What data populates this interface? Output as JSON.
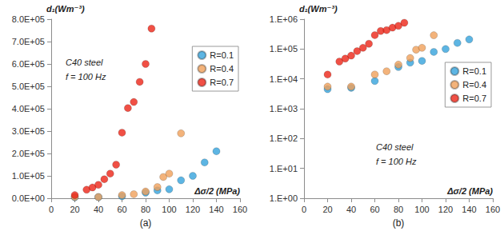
{
  "chart_data": [
    {
      "type": "scatter",
      "title": "(a)",
      "x_label": "Δσ/2 (MPa)",
      "y_label": "d₁(Wm⁻³)",
      "annotations": [
        "C40 steel",
        "f = 100 Hz"
      ],
      "xlim": [
        0,
        160
      ],
      "xticks": [
        0,
        20,
        40,
        60,
        80,
        100,
        120,
        140,
        160
      ],
      "ylim": [
        0,
        800000
      ],
      "yticks": [
        {
          "value": 0,
          "label": "0.0E+00"
        },
        {
          "value": 100000,
          "label": "1.0E+05"
        },
        {
          "value": 200000,
          "label": "2.0E+05"
        },
        {
          "value": 300000,
          "label": "3.0E+05"
        },
        {
          "value": 400000,
          "label": "4.0E+05"
        },
        {
          "value": 500000,
          "label": "5.0E+05"
        },
        {
          "value": 600000,
          "label": "6.0E+05"
        },
        {
          "value": 700000,
          "label": "7.0E+05"
        },
        {
          "value": 800000,
          "label": "8.0E+05"
        }
      ],
      "grid": false,
      "legend": "right",
      "marker": "circle",
      "series": [
        {
          "name": "R=0.1",
          "color": "#35a3dc",
          "x": [
            20,
            40,
            60,
            80,
            90,
            100,
            110,
            120,
            130,
            140
          ],
          "values": [
            4500,
            5000,
            8500,
            25000,
            35000,
            40000,
            80000,
            100000,
            160000,
            210000
          ]
        },
        {
          "name": "R=0.4",
          "color": "#f0a05a",
          "x": [
            20,
            40,
            60,
            70,
            80,
            90,
            95,
            100,
            110
          ],
          "values": [
            5500,
            5500,
            14000,
            18000,
            30000,
            50000,
            95000,
            110000,
            290000
          ]
        },
        {
          "name": "R=0.7",
          "color": "#ec2416",
          "x": [
            20,
            30,
            35,
            40,
            45,
            50,
            55,
            60,
            65,
            70,
            75,
            80,
            85
          ],
          "values": [
            14000,
            38000,
            48000,
            60000,
            85000,
            110000,
            150000,
            293000,
            403000,
            430000,
            520000,
            600000,
            758000
          ]
        }
      ]
    },
    {
      "type": "scatter",
      "title": "(b)",
      "x_label": "Δσ/2 (MPa)",
      "y_label": "d₁(Wm⁻³)",
      "annotations": [
        "C40 steel",
        "f = 100 Hz"
      ],
      "xlim": [
        0,
        160
      ],
      "xticks": [
        0,
        20,
        40,
        60,
        80,
        100,
        120,
        140,
        160
      ],
      "ylim": [
        1,
        1000000
      ],
      "yticks": [
        {
          "value": 1,
          "label": "1.E+00"
        },
        {
          "value": 10,
          "label": "1.E+01"
        },
        {
          "value": 100,
          "label": "1.E+02"
        },
        {
          "value": 1000,
          "label": "1.E+03"
        },
        {
          "value": 10000,
          "label": "1.E+04"
        },
        {
          "value": 100000,
          "label": "1.E+05"
        },
        {
          "value": 1000000,
          "label": "1.E+06"
        }
      ],
      "log": "y",
      "grid": false,
      "legend": "right",
      "marker": "circle",
      "series": [
        {
          "name": "R=0.1",
          "color": "#35a3dc",
          "x": [
            20,
            40,
            60,
            80,
            90,
            100,
            110,
            120,
            130,
            140
          ],
          "values": [
            4500,
            5000,
            8500,
            25000,
            35000,
            40000,
            80000,
            100000,
            160000,
            210000
          ]
        },
        {
          "name": "R=0.4",
          "color": "#f0a05a",
          "x": [
            20,
            40,
            60,
            70,
            80,
            90,
            95,
            100,
            110
          ],
          "values": [
            5500,
            5500,
            14000,
            18000,
            30000,
            50000,
            95000,
            110000,
            290000
          ]
        },
        {
          "name": "R=0.7",
          "color": "#ec2416",
          "x": [
            20,
            30,
            35,
            40,
            45,
            50,
            55,
            60,
            65,
            70,
            75,
            80,
            85
          ],
          "values": [
            14000,
            38000,
            48000,
            60000,
            85000,
            110000,
            150000,
            293000,
            403000,
            430000,
            520000,
            600000,
            758000
          ]
        }
      ]
    }
  ]
}
